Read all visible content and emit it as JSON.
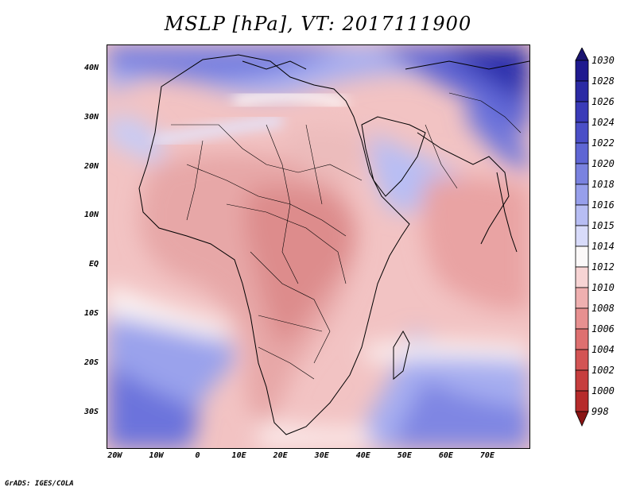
{
  "title": "MSLP [hPa], VT: 2017111900",
  "footer": "GrADS: IGES/COLA",
  "map": {
    "lon_range": [
      -22,
      80
    ],
    "lat_range": [
      -37,
      45
    ],
    "lat_labels": [
      {
        "value": 40,
        "text": "40N"
      },
      {
        "value": 30,
        "text": "30N"
      },
      {
        "value": 20,
        "text": "20N"
      },
      {
        "value": 10,
        "text": "10N"
      },
      {
        "value": 0,
        "text": "EQ"
      },
      {
        "value": -10,
        "text": "10S"
      },
      {
        "value": -20,
        "text": "20S"
      },
      {
        "value": -30,
        "text": "30S"
      }
    ],
    "lon_labels": [
      {
        "value": -20,
        "text": "20W"
      },
      {
        "value": -10,
        "text": "10W"
      },
      {
        "value": 0,
        "text": "0"
      },
      {
        "value": 10,
        "text": "10E"
      },
      {
        "value": 20,
        "text": "20E"
      },
      {
        "value": 30,
        "text": "30E"
      },
      {
        "value": 40,
        "text": "40E"
      },
      {
        "value": 50,
        "text": "50E"
      },
      {
        "value": 60,
        "text": "60E"
      },
      {
        "value": 70,
        "text": "70E"
      }
    ]
  },
  "colorbar": {
    "levels": [
      {
        "label": "1030",
        "color": "#1f1a8f"
      },
      {
        "label": "1028",
        "color": "#2b2aa4"
      },
      {
        "label": "1026",
        "color": "#3a3bb8"
      },
      {
        "label": "1024",
        "color": "#4b4fc7"
      },
      {
        "label": "1022",
        "color": "#5f66d4"
      },
      {
        "label": "1020",
        "color": "#7a82df"
      },
      {
        "label": "1018",
        "color": "#979feb"
      },
      {
        "label": "1016",
        "color": "#b7bdf3"
      },
      {
        "label": "1015",
        "color": "#d8dbfa"
      },
      {
        "label": "1014",
        "color": "#fbf8f8"
      },
      {
        "label": "1012",
        "color": "#f7d4d4"
      },
      {
        "label": "1010",
        "color": "#efb0b0"
      },
      {
        "label": "1008",
        "color": "#e79090"
      },
      {
        "label": "1006",
        "color": "#de7070"
      },
      {
        "label": "1004",
        "color": "#d35454"
      },
      {
        "label": "1002",
        "color": "#c63e3e"
      },
      {
        "label": "1000",
        "color": "#b62b2b"
      },
      {
        "label": "998",
        "color": "#a11c1c"
      }
    ],
    "top_arrow_color": "#1a1470",
    "bottom_arrow_color": "#8a1414"
  }
}
